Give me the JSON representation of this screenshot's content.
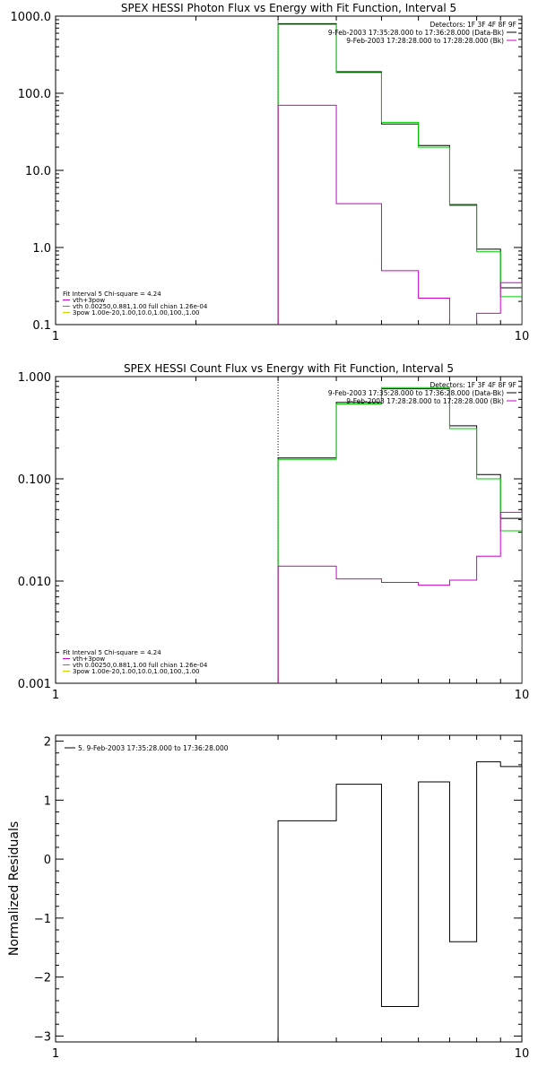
{
  "chart_data": [
    {
      "type": "line",
      "title": "SPEX HESSI Photon Flux vs Energy with Fit Function, Interval 5",
      "xlabel": "",
      "ylabel": "",
      "x_scale": "log",
      "y_scale": "log",
      "xlim": [
        1,
        10
      ],
      "ylim": [
        0.1,
        1000
      ],
      "x_ticks": [
        {
          "v": 1,
          "label": "1"
        },
        {
          "v": 10,
          "label": "10"
        }
      ],
      "y_ticks": [
        {
          "v": 1000,
          "label": "1000.0"
        },
        {
          "v": 100,
          "label": "100.0"
        },
        {
          "v": 10,
          "label": "10.0"
        },
        {
          "v": 1,
          "label": "1.0"
        },
        {
          "v": 0.1,
          "label": "0.1"
        }
      ],
      "vline_x": 3,
      "legend_top": {
        "header": "Detectors: 1F 3F 4F 8F 9F",
        "entries": [
          {
            "text": "9-Feb-2003 17:35:28.000 to 17:36:28.000 (Data-Bk)",
            "color": "#000000"
          },
          {
            "text": "9-Feb-2003 17:28:28.000 to 17:28:28.000 (Bk)",
            "color": "#cc00cc"
          }
        ]
      },
      "legend_bottom": {
        "header": "Fit Interval 5   Chi-square = 4.24",
        "entries": [
          {
            "text": "vth+3pow",
            "color": "#cc00cc"
          },
          {
            "text": "vth 0.00250,0.881,1.00   full chian 1.26e-04",
            "color": "#00cc00"
          },
          {
            "text": "3pow 1.00e-20,1.00,10.0,1.00,100.,1.00",
            "color": "#cccc00"
          }
        ]
      },
      "series": [
        {
          "color": "#000000",
          "edges": [
            3,
            4,
            5,
            6,
            7,
            8,
            9,
            10
          ],
          "values": [
            800,
            190,
            40,
            21,
            3.6,
            0.95,
            0.3
          ]
        },
        {
          "color": "#00cc00",
          "edges": [
            3,
            4,
            5,
            6,
            7,
            8,
            9,
            10
          ],
          "values": [
            780,
            185,
            42,
            20,
            3.5,
            0.88,
            0.23
          ]
        },
        {
          "color": "#cc00cc",
          "edges": [
            3,
            4,
            5,
            6,
            7,
            8,
            9,
            10
          ],
          "values": [
            70,
            3.7,
            0.5,
            0.22,
            0.1,
            0.14,
            0.35
          ]
        }
      ]
    },
    {
      "type": "line",
      "title": "SPEX HESSI Count Flux vs Energy with Fit Function, Interval 5",
      "xlabel": "",
      "ylabel": "",
      "x_scale": "log",
      "y_scale": "log",
      "xlim": [
        1,
        10
      ],
      "ylim": [
        0.001,
        1
      ],
      "x_ticks": [
        {
          "v": 1,
          "label": "1"
        },
        {
          "v": 10,
          "label": "10"
        }
      ],
      "y_ticks": [
        {
          "v": 1,
          "label": "1.000"
        },
        {
          "v": 0.1,
          "label": "0.100"
        },
        {
          "v": 0.01,
          "label": "0.010"
        },
        {
          "v": 0.001,
          "label": "0.001"
        }
      ],
      "vline_x": 3,
      "legend_top": {
        "header": "Detectors: 1F 3F 4F 8F 9F",
        "entries": [
          {
            "text": "9-Feb-2003 17:35:28.000 to 17:36:28.000 (Data-Bk)",
            "color": "#000000"
          },
          {
            "text": "9-Feb-2003 17:28:28.000 to 17:28:28.000 (Bk)",
            "color": "#cc00cc"
          }
        ]
      },
      "legend_bottom": {
        "header": "Fit Interval 5   Chi-square = 4.24",
        "entries": [
          {
            "text": "vth+3pow",
            "color": "#cc00cc"
          },
          {
            "text": "vth 0.00250,0.881,1.00   full chian 1.26e-04",
            "color": "#00cc00"
          },
          {
            "text": "3pow 1.00e-20,1.00,10.0,1.00,100.,1.00",
            "color": "#cccc00"
          }
        ]
      },
      "series": [
        {
          "color": "#000000",
          "edges": [
            3,
            4,
            5,
            6,
            7,
            8,
            9,
            10
          ],
          "values": [
            0.16,
            0.56,
            0.76,
            0.76,
            0.33,
            0.11,
            0.041
          ]
        },
        {
          "color": "#00cc00",
          "edges": [
            3,
            4,
            5,
            6,
            7,
            8,
            9,
            10
          ],
          "values": [
            0.155,
            0.54,
            0.78,
            0.78,
            0.31,
            0.1,
            0.031
          ]
        },
        {
          "color": "#cc00cc",
          "edges": [
            3,
            4,
            5,
            6,
            7,
            8,
            9,
            10
          ],
          "values": [
            0.014,
            0.0105,
            0.0097,
            0.0091,
            0.0102,
            0.0175,
            0.047
          ]
        }
      ]
    },
    {
      "type": "line",
      "title": "",
      "xlabel": "",
      "ylabel": "Normalized Residuals",
      "x_scale": "log",
      "y_scale": "linear",
      "xlim": [
        1,
        10
      ],
      "ylim": [
        -3.1,
        2.1
      ],
      "x_ticks": [
        {
          "v": 1,
          "label": "1"
        },
        {
          "v": 10,
          "label": "10"
        }
      ],
      "y_ticks": [
        {
          "v": 2,
          "label": "2"
        },
        {
          "v": 1,
          "label": "1"
        },
        {
          "v": 0,
          "label": "0"
        },
        {
          "v": -1,
          "label": "−1"
        },
        {
          "v": -2,
          "label": "−2"
        },
        {
          "v": -3,
          "label": "−3"
        }
      ],
      "legend_top": {
        "header": "",
        "entries": [
          {
            "text": "5. 9-Feb-2003 17:35:28.000 to 17:36:28.000",
            "color": "#000000"
          }
        ]
      },
      "series": [
        {
          "color": "#000000",
          "edges": [
            3,
            4,
            5,
            6,
            7,
            8,
            9,
            10
          ],
          "values": [
            0.65,
            1.27,
            -2.5,
            1.31,
            -1.4,
            1.65,
            1.57
          ]
        }
      ]
    }
  ]
}
